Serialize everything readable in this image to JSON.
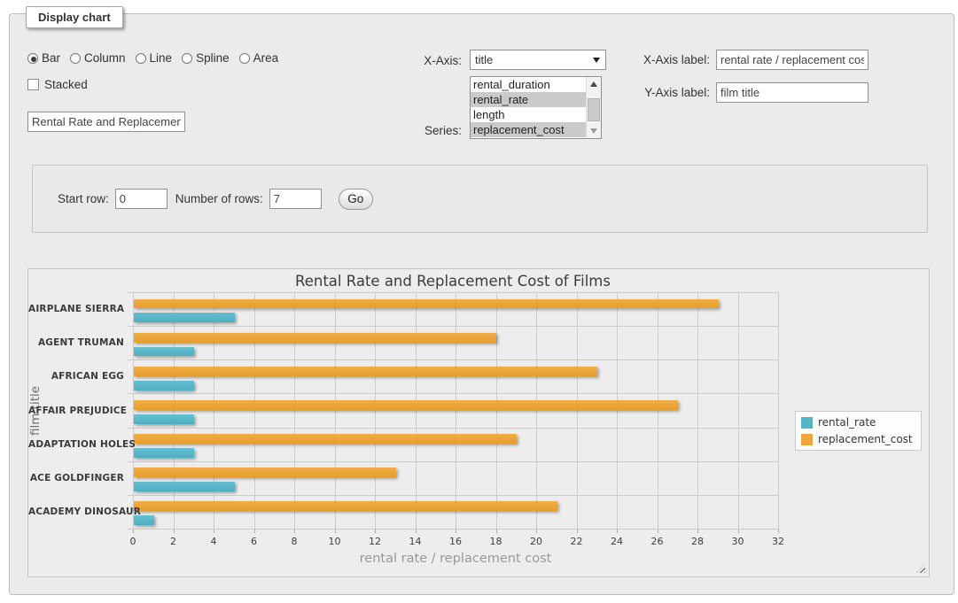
{
  "window": {
    "legend": "Display chart"
  },
  "controls": {
    "chart_types": [
      {
        "label": "Bar",
        "selected": true
      },
      {
        "label": "Column",
        "selected": false
      },
      {
        "label": "Line",
        "selected": false
      },
      {
        "label": "Spline",
        "selected": false
      },
      {
        "label": "Area",
        "selected": false
      }
    ],
    "stacked": {
      "label": "Stacked",
      "checked": false
    },
    "title_input": {
      "value": "Rental Rate and Replacement Cost of Films"
    },
    "x_axis": {
      "label": "X-Axis:",
      "selected": "title"
    },
    "series_select": {
      "label": "Series:",
      "options": [
        {
          "label": "rental_duration",
          "selected": false
        },
        {
          "label": "rental_rate",
          "selected": true
        },
        {
          "label": "length",
          "selected": false
        },
        {
          "label": "replacement_cost",
          "selected": true
        }
      ]
    },
    "x_axis_label": {
      "label": "X-Axis label:",
      "value": "rental rate / replacement cost"
    },
    "y_axis_label": {
      "label": "Y-Axis label:",
      "value": "film title"
    }
  },
  "rows_panel": {
    "start_row_label": "Start row:",
    "start_row_value": "0",
    "num_rows_label": "Number of rows:",
    "num_rows_value": "7",
    "go_label": "Go"
  },
  "chart_data": {
    "type": "bar",
    "title": "Rental Rate and Replacement Cost of Films",
    "categories": [
      "AIRPLANE SIERRA",
      "AGENT TRUMAN",
      "AFRICAN EGG",
      "AFFAIR PREJUDICE",
      "ADAPTATION HOLES",
      "ACE GOLDFINGER",
      "ACADEMY DINOSAUR"
    ],
    "series": [
      {
        "name": "rental_rate",
        "color": "#55b4c6",
        "values": [
          4.99,
          2.99,
          2.99,
          2.99,
          2.99,
          4.99,
          0.99
        ]
      },
      {
        "name": "replacement_cost",
        "color": "#eca63d",
        "values": [
          28.99,
          17.99,
          22.99,
          26.99,
          18.99,
          12.99,
          20.99
        ]
      }
    ],
    "xlabel": "rental rate / replacement cost",
    "ylabel": "film title",
    "xlim": [
      0,
      32
    ],
    "xtick_step": 2,
    "grid": true,
    "legend_position": "right"
  }
}
